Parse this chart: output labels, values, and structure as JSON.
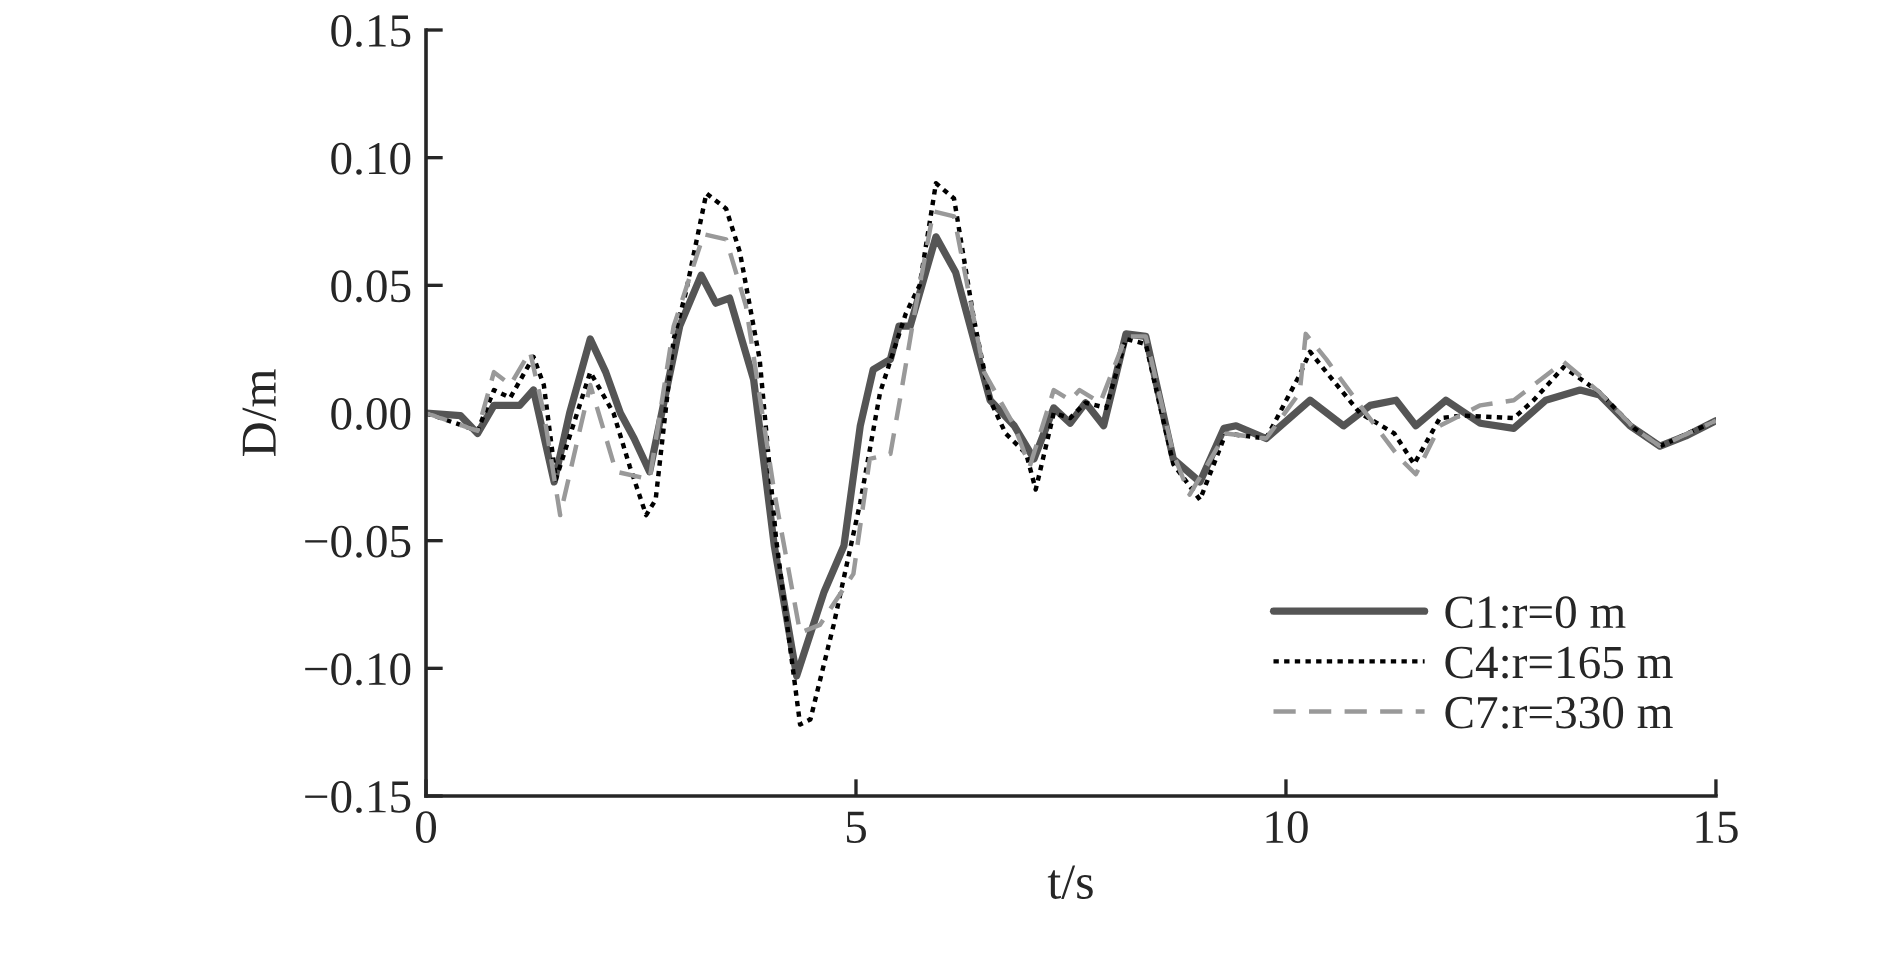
{
  "chart_data": {
    "type": "line",
    "xlabel": "t/s",
    "ylabel": "D/m",
    "xlim": [
      0,
      15
    ],
    "xticks": [
      0,
      5,
      10,
      15
    ],
    "ylim": [
      -0.15,
      0.15
    ],
    "yticks": [
      {
        "value": -0.15,
        "label": "−0.15"
      },
      {
        "value": -0.1,
        "label": "−0.10"
      },
      {
        "value": -0.05,
        "label": "−0.05"
      },
      {
        "value": 0,
        "label": "0.00"
      },
      {
        "value": 0.05,
        "label": "0.05"
      },
      {
        "value": 0.1,
        "label": "0.10"
      },
      {
        "value": 0.15,
        "label": "0.15"
      }
    ],
    "grid": false,
    "legend": "bottom right",
    "marker": "none",
    "series": [
      {
        "name": "C1:r=0 m",
        "color": "#555555",
        "line_style": "solid",
        "x": [
          0,
          0.4,
          0.6,
          0.79,
          1.09,
          1.25,
          1.49,
          1.67,
          1.91,
          2.09,
          2.26,
          2.42,
          2.6,
          2.95,
          3.2,
          3.37,
          3.53,
          3.81,
          4.05,
          4.31,
          4.63,
          4.86,
          5.05,
          5.2,
          5.4,
          5.5,
          5.63,
          5.93,
          6.16,
          6.56,
          6.84,
          7.07,
          7.3,
          7.49,
          7.67,
          7.88,
          8.14,
          8.37,
          8.69,
          9.0,
          9.28,
          9.42,
          9.77,
          10.28,
          10.67,
          10.98,
          11.28,
          11.51,
          11.86,
          12.26,
          12.65,
          13.02,
          13.42,
          13.65,
          14.0,
          14.35,
          14.65,
          15.0
        ],
        "values": [
          0,
          -0.001,
          -0.008,
          0.003,
          0.003,
          0.009,
          -0.027,
          0.0,
          0.029,
          0.016,
          0.0,
          -0.01,
          -0.023,
          0.034,
          0.054,
          0.043,
          0.045,
          0.013,
          -0.052,
          -0.103,
          -0.07,
          -0.052,
          -0.005,
          0.017,
          0.021,
          0.034,
          0.034,
          0.069,
          0.055,
          0.005,
          -0.005,
          -0.018,
          0.002,
          -0.004,
          0.004,
          -0.005,
          0.031,
          0.03,
          -0.018,
          -0.027,
          -0.006,
          -0.005,
          -0.01,
          0.005,
          -0.005,
          0.003,
          0.005,
          -0.005,
          0.005,
          -0.004,
          -0.006,
          0.005,
          0.009,
          0.007,
          -0.005,
          -0.013,
          -0.009,
          -0.003
        ]
      },
      {
        "name": "C4:r=165 m",
        "color": "#000000",
        "line_style": "dotted",
        "x": [
          0,
          0.6,
          0.79,
          0.98,
          1.25,
          1.37,
          1.51,
          1.91,
          2.18,
          2.37,
          2.56,
          2.67,
          2.88,
          3.02,
          3.26,
          3.49,
          3.65,
          3.88,
          4.07,
          4.35,
          4.47,
          4.74,
          5.05,
          5.28,
          5.58,
          5.74,
          5.93,
          6.14,
          6.37,
          6.56,
          6.74,
          6.98,
          7.09,
          7.3,
          7.49,
          7.67,
          7.91,
          8.14,
          8.37,
          8.69,
          9.0,
          9.3,
          9.77,
          10.16,
          10.28,
          10.47,
          10.86,
          11.26,
          11.49,
          11.79,
          12.07,
          12.65,
          12.88,
          13.23,
          13.65,
          14.05,
          14.35,
          15.0
        ],
        "values": [
          0,
          -0.007,
          0.009,
          0.006,
          0.022,
          0.011,
          -0.026,
          0.016,
          0.0,
          -0.021,
          -0.04,
          -0.034,
          0.029,
          0.047,
          0.086,
          0.08,
          0.063,
          0.021,
          -0.049,
          -0.122,
          -0.12,
          -0.083,
          -0.035,
          0.008,
          0.039,
          0.05,
          0.09,
          0.084,
          0.037,
          0.005,
          -0.008,
          -0.016,
          -0.03,
          0.0,
          -0.002,
          0.004,
          0.002,
          0.029,
          0.027,
          -0.02,
          -0.034,
          -0.008,
          -0.01,
          0.015,
          0.024,
          0.016,
          0.0,
          -0.008,
          -0.02,
          -0.002,
          -0.001,
          -0.002,
          0.005,
          0.018,
          0.008,
          -0.006,
          -0.013,
          -0.003
        ]
      },
      {
        "name": "C7:r=330 m",
        "color": "#999999",
        "line_style": "dashed",
        "x": [
          0,
          0.6,
          0.79,
          0.98,
          1.21,
          1.37,
          1.56,
          1.91,
          2.21,
          2.6,
          2.88,
          3.23,
          3.49,
          3.72,
          4.05,
          4.35,
          4.58,
          4.97,
          5.16,
          5.4,
          5.51,
          5.67,
          5.9,
          6.14,
          6.49,
          6.84,
          7.02,
          7.3,
          7.49,
          7.6,
          7.84,
          8.14,
          8.37,
          8.69,
          8.88,
          9.3,
          9.77,
          10.16,
          10.23,
          10.47,
          10.86,
          11.33,
          11.51,
          11.79,
          12.26,
          12.65,
          13.23,
          13.65,
          14.05,
          14.35,
          15.0
        ],
        "values": [
          0,
          -0.007,
          0.016,
          0.011,
          0.024,
          0.0,
          -0.04,
          0.011,
          -0.023,
          -0.026,
          0.034,
          0.07,
          0.068,
          0.042,
          -0.031,
          -0.086,
          -0.083,
          -0.063,
          -0.018,
          -0.016,
          0.005,
          0.037,
          0.079,
          0.077,
          0.016,
          -0.005,
          -0.021,
          0.009,
          0.005,
          0.009,
          0.004,
          0.03,
          0.03,
          -0.016,
          -0.032,
          -0.008,
          -0.01,
          0.008,
          0.031,
          0.021,
          0.003,
          -0.018,
          -0.024,
          -0.005,
          0.003,
          0.005,
          0.02,
          0.008,
          -0.006,
          -0.013,
          -0.003
        ]
      }
    ]
  }
}
